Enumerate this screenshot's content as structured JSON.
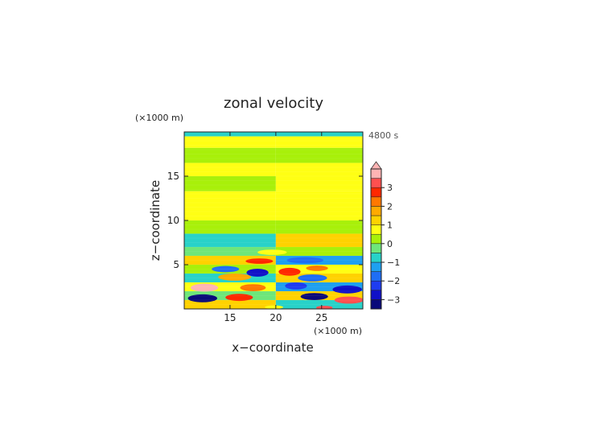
{
  "chart_data": {
    "type": "heatmap",
    "title": "zonal velocity",
    "xlabel": "x−coordinate",
    "ylabel": "z−coordinate",
    "x_unit": "(×1000 m)",
    "z_unit": "(×1000 m)",
    "time_label": "4800 s",
    "xlim": [
      10,
      29.5
    ],
    "ylim": [
      0,
      20
    ],
    "xticks": [
      15,
      20,
      25
    ],
    "yticks": [
      5,
      10,
      15
    ],
    "colorbar": {
      "ticks": [
        3,
        2,
        1,
        0,
        -1,
        -2,
        -3
      ],
      "levels": [
        {
          "lo": -3.5,
          "hi": -3.0,
          "color": "#0a0a7a"
        },
        {
          "lo": -3.0,
          "hi": -2.5,
          "color": "#1010c8"
        },
        {
          "lo": -2.5,
          "hi": -2.0,
          "color": "#1e3cf0"
        },
        {
          "lo": -2.0,
          "hi": -1.5,
          "color": "#1e6ef5"
        },
        {
          "lo": -1.5,
          "hi": -1.0,
          "color": "#1ea0f0"
        },
        {
          "lo": -1.0,
          "hi": -0.5,
          "color": "#28d2c8"
        },
        {
          "lo": -0.5,
          "hi": 0.0,
          "color": "#6ee67a"
        },
        {
          "lo": 0.0,
          "hi": 0.5,
          "color": "#a8f00a"
        },
        {
          "lo": 0.5,
          "hi": 1.0,
          "color": "#ffff14"
        },
        {
          "lo": 1.0,
          "hi": 1.5,
          "color": "#ffd200"
        },
        {
          "lo": 1.5,
          "hi": 2.0,
          "color": "#ffaa00"
        },
        {
          "lo": 2.0,
          "hi": 2.5,
          "color": "#ff7800"
        },
        {
          "lo": 2.5,
          "hi": 3.0,
          "color": "#ff2800"
        },
        {
          "lo": 3.0,
          "hi": 3.5,
          "color": "#ff5050"
        },
        {
          "lo": 3.5,
          "hi": 4.0,
          "color": "#ffb4b4"
        }
      ]
    },
    "field_bands": [
      {
        "z": [
          19.5,
          20.0
        ],
        "left": -0.75,
        "right": -0.75
      },
      {
        "z": [
          18.2,
          19.5
        ],
        "left": 0.75,
        "right": 0.75
      },
      {
        "z": [
          16.5,
          18.2
        ],
        "left": 0.25,
        "right": 0.25
      },
      {
        "z": [
          15.0,
          16.5
        ],
        "left": 0.75,
        "right": 0.75
      },
      {
        "z": [
          13.3,
          15.0
        ],
        "left": 0.25,
        "right": 0.75
      },
      {
        "z": [
          10.0,
          13.3
        ],
        "left": 0.75,
        "right": 0.75
      },
      {
        "z": [
          8.5,
          10.0
        ],
        "left": 0.25,
        "right": 0.25
      },
      {
        "z": [
          7.0,
          8.5
        ],
        "left": -0.75,
        "right": 1.25
      },
      {
        "z": [
          6.0,
          7.0
        ],
        "left": -0.25,
        "right": 0.25
      },
      {
        "z": [
          5.0,
          6.0
        ],
        "left": 1.25,
        "right": -1.25
      },
      {
        "z": [
          4.0,
          5.0
        ],
        "left": 0.25,
        "right": 0.75
      },
      {
        "z": [
          3.0,
          4.0
        ],
        "left": -0.75,
        "right": 1.25
      },
      {
        "z": [
          2.0,
          3.0
        ],
        "left": 0.75,
        "right": -1.25
      },
      {
        "z": [
          1.0,
          2.0
        ],
        "left": -0.25,
        "right": 1.25
      },
      {
        "z": [
          0.0,
          1.0
        ],
        "left": 1.25,
        "right": -0.75
      }
    ],
    "field_blobs": [
      {
        "x": 12.0,
        "z": 1.2,
        "rx": 1.6,
        "rz": 0.45,
        "value": -3.25
      },
      {
        "x": 12.2,
        "z": 2.4,
        "rx": 1.5,
        "rz": 0.45,
        "value": 3.75
      },
      {
        "x": 16.0,
        "z": 1.3,
        "rx": 1.5,
        "rz": 0.4,
        "value": 2.75
      },
      {
        "x": 17.5,
        "z": 2.4,
        "rx": 1.4,
        "rz": 0.4,
        "value": 2.25
      },
      {
        "x": 15.5,
        "z": 3.6,
        "rx": 1.8,
        "rz": 0.4,
        "value": 1.75
      },
      {
        "x": 18.0,
        "z": 4.1,
        "rx": 1.2,
        "rz": 0.45,
        "value": -2.75
      },
      {
        "x": 14.5,
        "z": 4.5,
        "rx": 1.5,
        "rz": 0.35,
        "value": -1.75
      },
      {
        "x": 18.2,
        "z": 5.4,
        "rx": 1.5,
        "rz": 0.3,
        "value": 2.75
      },
      {
        "x": 14.0,
        "z": 5.6,
        "rx": 2.2,
        "rz": 0.35,
        "value": 1.25
      },
      {
        "x": 23.2,
        "z": 5.5,
        "rx": 2.0,
        "rz": 0.35,
        "value": -1.75
      },
      {
        "x": 21.5,
        "z": 4.2,
        "rx": 1.2,
        "rz": 0.45,
        "value": 2.75
      },
      {
        "x": 24.0,
        "z": 3.5,
        "rx": 1.6,
        "rz": 0.4,
        "value": -1.75
      },
      {
        "x": 22.2,
        "z": 2.6,
        "rx": 1.2,
        "rz": 0.4,
        "value": -2.25
      },
      {
        "x": 24.2,
        "z": 1.4,
        "rx": 1.5,
        "rz": 0.4,
        "value": -3.25
      },
      {
        "x": 27.8,
        "z": 2.2,
        "rx": 1.6,
        "rz": 0.45,
        "value": -2.75
      },
      {
        "x": 28.0,
        "z": 1.0,
        "rx": 1.6,
        "rz": 0.4,
        "value": 3.25
      },
      {
        "x": 24.5,
        "z": 4.6,
        "rx": 1.2,
        "rz": 0.3,
        "value": 2.25
      },
      {
        "x": 19.8,
        "z": 0.2,
        "rx": 1.0,
        "rz": 0.2,
        "value": 0.75
      },
      {
        "x": 25.3,
        "z": 0.15,
        "rx": 0.9,
        "rz": 0.2,
        "value": 3.25
      },
      {
        "x": 19.6,
        "z": 6.4,
        "rx": 1.6,
        "rz": 0.3,
        "value": 0.75
      }
    ]
  }
}
